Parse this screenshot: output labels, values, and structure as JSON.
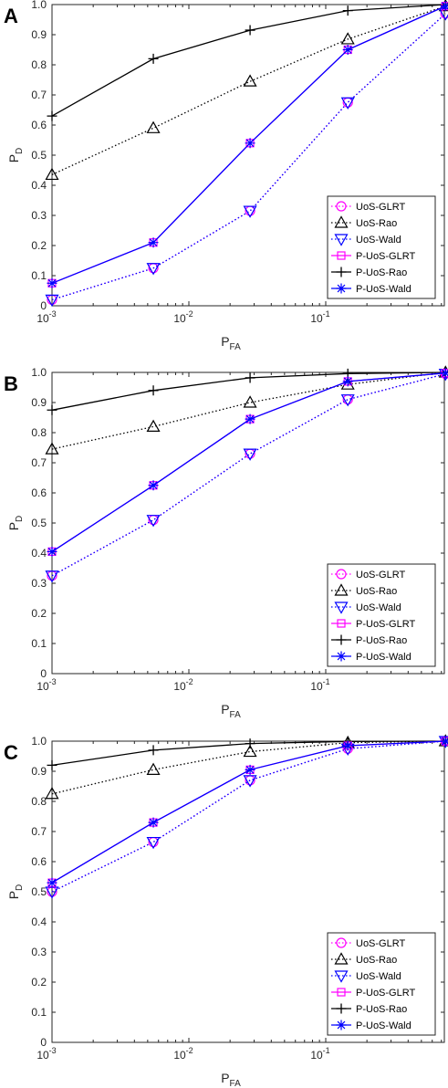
{
  "chart_data": [
    {
      "panel": "A",
      "type": "line",
      "xlabel": "P",
      "xlabel_sub": "FA",
      "ylabel": "P",
      "ylabel_sub": "D",
      "xscale": "log",
      "xlim": [
        0.001,
        0.75
      ],
      "ylim": [
        0,
        1
      ],
      "xtick_labels": [
        {
          "base": "10",
          "exp": "-3"
        },
        {
          "base": "10",
          "exp": "-2"
        },
        {
          "base": "10",
          "exp": "-1"
        }
      ],
      "ytick_labels": [
        "0",
        "0.1",
        "0.2",
        "0.3",
        "0.4",
        "0.5",
        "0.6",
        "0.7",
        "0.8",
        "0.9",
        "1.0"
      ],
      "legend_position": "bottom-right",
      "x": [
        0.001,
        0.0055,
        0.028,
        0.145,
        0.75
      ],
      "series": [
        {
          "name": "UoS-GLRT",
          "values": [
            0.02,
            0.125,
            0.315,
            0.675,
            0.97
          ]
        },
        {
          "name": "UoS-Rao",
          "values": [
            0.435,
            0.59,
            0.745,
            0.885,
            0.995
          ]
        },
        {
          "name": "UoS-Wald",
          "values": [
            0.02,
            0.125,
            0.315,
            0.675,
            0.97
          ]
        },
        {
          "name": "P-UoS-GLRT",
          "values": [
            0.075,
            0.21,
            0.54,
            0.85,
            0.995
          ]
        },
        {
          "name": "P-UoS-Rao",
          "values": [
            0.63,
            0.82,
            0.915,
            0.98,
            1.0
          ]
        },
        {
          "name": "P-UoS-Wald",
          "values": [
            0.075,
            0.21,
            0.54,
            0.85,
            0.995
          ]
        }
      ]
    },
    {
      "panel": "B",
      "type": "line",
      "xlabel": "P",
      "xlabel_sub": "FA",
      "ylabel": "P",
      "ylabel_sub": "D",
      "xscale": "log",
      "xlim": [
        0.001,
        0.75
      ],
      "ylim": [
        0,
        1
      ],
      "xtick_labels": [
        {
          "base": "10",
          "exp": "-3"
        },
        {
          "base": "10",
          "exp": "-2"
        },
        {
          "base": "10",
          "exp": "-1"
        }
      ],
      "ytick_labels": [
        "0",
        "0.1",
        "0.2",
        "0.3",
        "0.4",
        "0.5",
        "0.6",
        "0.7",
        "0.8",
        "0.9",
        "1.0"
      ],
      "legend_position": "bottom-right",
      "x": [
        0.001,
        0.0055,
        0.028,
        0.145,
        0.75
      ],
      "series": [
        {
          "name": "UoS-GLRT",
          "values": [
            0.325,
            0.51,
            0.73,
            0.91,
            0.995
          ]
        },
        {
          "name": "UoS-Rao",
          "values": [
            0.745,
            0.82,
            0.9,
            0.96,
            1.0
          ]
        },
        {
          "name": "UoS-Wald",
          "values": [
            0.325,
            0.51,
            0.73,
            0.91,
            0.995
          ]
        },
        {
          "name": "P-UoS-GLRT",
          "values": [
            0.405,
            0.625,
            0.845,
            0.97,
            0.998
          ]
        },
        {
          "name": "P-UoS-Rao",
          "values": [
            0.875,
            0.94,
            0.982,
            0.996,
            1.0
          ]
        },
        {
          "name": "P-UoS-Wald",
          "values": [
            0.405,
            0.625,
            0.845,
            0.97,
            0.998
          ]
        }
      ]
    },
    {
      "panel": "C",
      "type": "line",
      "xlabel": "P",
      "xlabel_sub": "FA",
      "ylabel": "P",
      "ylabel_sub": "D",
      "xscale": "log",
      "xlim": [
        0.001,
        0.75
      ],
      "ylim": [
        0,
        1
      ],
      "xtick_labels": [
        {
          "base": "10",
          "exp": "-3"
        },
        {
          "base": "10",
          "exp": "-2"
        },
        {
          "base": "10",
          "exp": "-1"
        }
      ],
      "ytick_labels": [
        "0",
        "0.1",
        "0.2",
        "0.3",
        "0.4",
        "0.5",
        "0.6",
        "0.7",
        "0.8",
        "0.9",
        "1.0"
      ],
      "legend_position": "bottom-right",
      "x": [
        0.001,
        0.0055,
        0.028,
        0.145,
        0.75
      ],
      "series": [
        {
          "name": "UoS-GLRT",
          "values": [
            0.5,
            0.665,
            0.87,
            0.975,
            1.0
          ]
        },
        {
          "name": "UoS-Rao",
          "values": [
            0.825,
            0.905,
            0.965,
            0.995,
            1.0
          ]
        },
        {
          "name": "UoS-Wald",
          "values": [
            0.5,
            0.665,
            0.87,
            0.975,
            1.0
          ]
        },
        {
          "name": "P-UoS-GLRT",
          "values": [
            0.53,
            0.73,
            0.905,
            0.985,
            1.0
          ]
        },
        {
          "name": "P-UoS-Rao",
          "values": [
            0.92,
            0.97,
            0.992,
            0.999,
            1.0
          ]
        },
        {
          "name": "P-UoS-Wald",
          "values": [
            0.53,
            0.73,
            0.905,
            0.985,
            1.0
          ]
        }
      ]
    }
  ],
  "series_styles": [
    {
      "color": "#ff00ff",
      "dash": "dotted",
      "marker": "circle"
    },
    {
      "color": "#000000",
      "dash": "dotted",
      "marker": "triangle-up"
    },
    {
      "color": "#0000ff",
      "dash": "dotted",
      "marker": "triangle-down"
    },
    {
      "color": "#ff00ff",
      "dash": "solid",
      "marker": "square"
    },
    {
      "color": "#000000",
      "dash": "solid",
      "marker": "plus"
    },
    {
      "color": "#0000ff",
      "dash": "solid",
      "marker": "asterisk"
    }
  ]
}
